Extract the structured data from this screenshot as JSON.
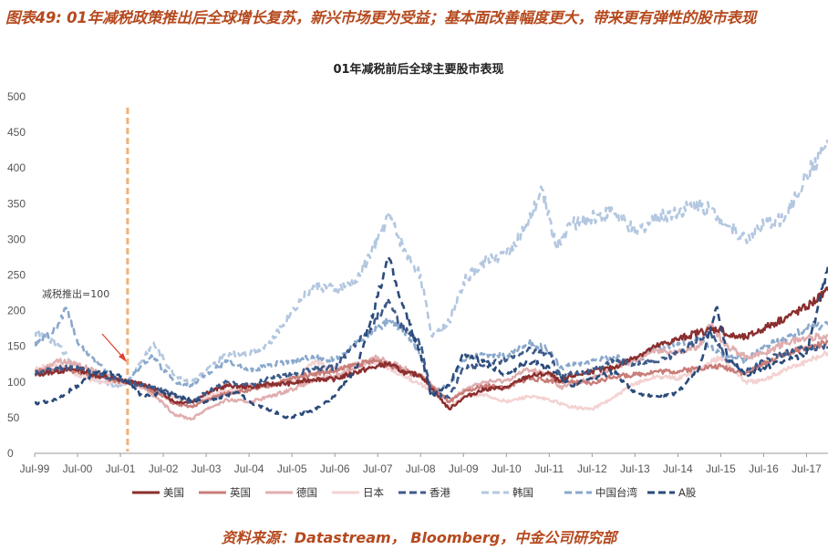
{
  "figure": {
    "title": "图表49: 01年减税政策推出后全球增长复苏，新兴市场更为受益；基本面改善幅度更大，带来更有弹性的股市表现",
    "source": "资料来源：Datastream， Bloomberg，中金公司研究部"
  },
  "chart_data": {
    "type": "line",
    "title": "01年减税前后全球主要股市表现",
    "xlabel": "",
    "ylabel": "",
    "ylim": [
      0,
      500
    ],
    "yticks": [
      0,
      50,
      100,
      150,
      200,
      250,
      300,
      350,
      400,
      450,
      500
    ],
    "x_tick_labels": [
      "Jul-99",
      "Jul-00",
      "Jul-01",
      "Jul-02",
      "Jul-03",
      "Jul-04",
      "Jul-05",
      "Jul-06",
      "Jul-07",
      "Jul-08",
      "Jul-09",
      "Jul-10",
      "Jul-11",
      "Jul-12",
      "Jul-13",
      "Jul-14",
      "Jul-15",
      "Jul-16",
      "Jul-17"
    ],
    "xrange": [
      "1999-07",
      "2018-01"
    ],
    "grid": false,
    "legend_position": "bottom",
    "vertical_marker": {
      "x": "2001-09",
      "color": "#f0b27a"
    },
    "annotation": {
      "text": "减税推出=100"
    },
    "series": [
      {
        "name": "美国",
        "color": "#8b2e2e",
        "dash": "solid",
        "x": [
          "1999-07",
          "2000-01",
          "2000-07",
          "2001-01",
          "2001-06",
          "2001-09",
          "2002-01",
          "2002-07",
          "2002-10",
          "2003-03",
          "2003-07",
          "2004-01",
          "2004-07",
          "2005-01",
          "2005-07",
          "2006-01",
          "2006-07",
          "2007-01",
          "2007-07",
          "2007-10",
          "2008-03",
          "2008-07",
          "2009-03",
          "2009-07",
          "2010-01",
          "2010-07",
          "2011-01",
          "2011-07",
          "2011-10",
          "2012-01",
          "2012-07",
          "2013-01",
          "2013-07",
          "2014-01",
          "2014-07",
          "2015-01",
          "2015-07",
          "2015-09",
          "2016-02",
          "2016-07",
          "2017-01",
          "2017-07",
          "2018-01"
        ],
        "values": [
          110,
          115,
          118,
          108,
          104,
          100,
          98,
          85,
          72,
          72,
          85,
          95,
          93,
          97,
          98,
          104,
          104,
          114,
          122,
          126,
          112,
          110,
          62,
          78,
          90,
          92,
          108,
          112,
          100,
          108,
          115,
          120,
          135,
          150,
          160,
          170,
          175,
          165,
          162,
          175,
          190,
          205,
          228
        ]
      },
      {
        "name": "英国",
        "color": "#c97d78",
        "dash": "solid",
        "x": [
          "1999-07",
          "2000-01",
          "2000-07",
          "2001-01",
          "2001-06",
          "2001-09",
          "2002-01",
          "2002-07",
          "2002-10",
          "2003-03",
          "2003-07",
          "2004-01",
          "2004-07",
          "2005-01",
          "2005-07",
          "2006-01",
          "2006-07",
          "2007-01",
          "2007-07",
          "2008-01",
          "2008-07",
          "2009-03",
          "2009-07",
          "2010-01",
          "2010-07",
          "2011-01",
          "2011-07",
          "2012-01",
          "2012-07",
          "2013-01",
          "2013-07",
          "2014-01",
          "2014-07",
          "2015-01",
          "2015-07",
          "2016-02",
          "2016-07",
          "2017-01",
          "2017-07",
          "2018-01"
        ],
        "values": [
          115,
          118,
          115,
          108,
          102,
          100,
          95,
          80,
          70,
          65,
          75,
          85,
          88,
          95,
          105,
          112,
          115,
          125,
          130,
          118,
          108,
          72,
          85,
          95,
          92,
          105,
          102,
          100,
          98,
          108,
          110,
          115,
          115,
          120,
          122,
          112,
          125,
          140,
          148,
          155
        ]
      },
      {
        "name": "德国",
        "color": "#e0aeb0",
        "dash": "solid",
        "x": [
          "1999-07",
          "2000-01",
          "2000-07",
          "2001-01",
          "2001-06",
          "2001-09",
          "2002-01",
          "2002-07",
          "2002-10",
          "2003-03",
          "2003-07",
          "2004-01",
          "2004-07",
          "2005-01",
          "2005-07",
          "2006-01",
          "2006-07",
          "2007-01",
          "2007-07",
          "2008-01",
          "2008-07",
          "2009-03",
          "2009-07",
          "2010-01",
          "2010-07",
          "2011-01",
          "2011-07",
          "2011-10",
          "2012-07",
          "2013-01",
          "2013-07",
          "2014-01",
          "2014-07",
          "2015-01",
          "2015-04",
          "2015-09",
          "2016-02",
          "2016-07",
          "2017-01",
          "2017-07",
          "2018-01"
        ],
        "values": [
          108,
          130,
          125,
          112,
          105,
          100,
          95,
          70,
          55,
          48,
          62,
          75,
          72,
          80,
          90,
          102,
          108,
          120,
          135,
          122,
          110,
          72,
          90,
          100,
          102,
          118,
          110,
          92,
          105,
          120,
          130,
          145,
          142,
          150,
          180,
          150,
          135,
          140,
          155,
          162,
          165
        ]
      },
      {
        "name": "日本",
        "color": "#f4d2d2",
        "dash": "solid",
        "x": [
          "1999-07",
          "2000-01",
          "2000-07",
          "2001-01",
          "2001-06",
          "2001-09",
          "2002-01",
          "2002-07",
          "2003-03",
          "2003-07",
          "2004-01",
          "2004-07",
          "2005-01",
          "2005-07",
          "2006-01",
          "2006-07",
          "2007-01",
          "2007-07",
          "2008-01",
          "2008-07",
          "2009-03",
          "2009-07",
          "2010-01",
          "2010-07",
          "2011-01",
          "2011-07",
          "2012-01",
          "2012-07",
          "2013-01",
          "2013-07",
          "2014-01",
          "2014-07",
          "2015-01",
          "2015-07",
          "2016-02",
          "2016-07",
          "2017-01",
          "2017-07",
          "2018-01"
        ],
        "values": [
          118,
          125,
          110,
          100,
          98,
          100,
          92,
          85,
          72,
          80,
          88,
          95,
          95,
          100,
          128,
          118,
          125,
          128,
          110,
          98,
          65,
          80,
          82,
          72,
          80,
          75,
          65,
          62,
          78,
          98,
          108,
          105,
          118,
          135,
          100,
          102,
          118,
          128,
          142
        ]
      },
      {
        "name": "香港",
        "color": "#3d5a8a",
        "dash": "dash",
        "x": [
          "1999-07",
          "2000-01",
          "2000-07",
          "2001-01",
          "2001-06",
          "2001-09",
          "2002-01",
          "2002-07",
          "2003-03",
          "2003-07",
          "2004-01",
          "2004-07",
          "2005-01",
          "2005-07",
          "2006-01",
          "2006-07",
          "2007-01",
          "2007-05",
          "2007-10",
          "2008-01",
          "2008-07",
          "2008-10",
          "2009-03",
          "2009-07",
          "2010-01",
          "2010-07",
          "2011-01",
          "2011-07",
          "2011-10",
          "2012-07",
          "2013-01",
          "2013-07",
          "2014-01",
          "2014-07",
          "2015-04",
          "2015-09",
          "2016-02",
          "2016-07",
          "2017-01",
          "2017-07",
          "2018-01"
        ],
        "values": [
          112,
          120,
          122,
          110,
          104,
          100,
          95,
          88,
          72,
          85,
          100,
          95,
          105,
          110,
          118,
          120,
          155,
          175,
          215,
          180,
          155,
          85,
          78,
          120,
          125,
          130,
          145,
          140,
          110,
          115,
          130,
          125,
          128,
          140,
          170,
          130,
          115,
          130,
          140,
          148,
          150
        ]
      },
      {
        "name": "韩国",
        "color": "#b3c7e0",
        "dash": "dash",
        "x": [
          "1999-07",
          "2000-01",
          "2000-07",
          "2001-01",
          "2001-06",
          "2001-09",
          "2002-01",
          "2002-04",
          "2002-10",
          "2003-03",
          "2003-07",
          "2004-01",
          "2004-07",
          "2005-01",
          "2005-07",
          "2006-01",
          "2006-07",
          "2007-01",
          "2007-07",
          "2007-10",
          "2008-03",
          "2008-07",
          "2008-10",
          "2009-03",
          "2009-07",
          "2010-01",
          "2010-07",
          "2011-01",
          "2011-05",
          "2011-09",
          "2012-01",
          "2012-07",
          "2013-01",
          "2013-07",
          "2014-01",
          "2014-07",
          "2015-01",
          "2015-07",
          "2016-02",
          "2016-07",
          "2017-01",
          "2017-07",
          "2018-01"
        ],
        "values": [
          170,
          155,
          120,
          100,
          95,
          100,
          130,
          155,
          110,
          100,
          115,
          140,
          140,
          155,
          200,
          235,
          230,
          240,
          300,
          335,
          280,
          250,
          165,
          185,
          240,
          270,
          280,
          320,
          370,
          290,
          320,
          330,
          340,
          310,
          330,
          340,
          350,
          330,
          300,
          320,
          330,
          390,
          435
        ]
      },
      {
        "name": "中国台湾",
        "color": "#8aa8cc",
        "dash": "dash",
        "x": [
          "1999-07",
          "2000-01",
          "2000-04",
          "2000-07",
          "2001-01",
          "2001-06",
          "2001-09",
          "2002-01",
          "2002-04",
          "2002-10",
          "2003-03",
          "2003-07",
          "2004-01",
          "2004-07",
          "2005-01",
          "2005-07",
          "2006-01",
          "2006-07",
          "2007-01",
          "2007-07",
          "2007-10",
          "2008-03",
          "2008-07",
          "2008-10",
          "2009-03",
          "2009-07",
          "2010-01",
          "2010-07",
          "2011-01",
          "2011-07",
          "2011-10",
          "2012-07",
          "2013-01",
          "2013-07",
          "2014-01",
          "2014-07",
          "2015-01",
          "2015-07",
          "2016-02",
          "2016-07",
          "2017-01",
          "2017-07",
          "2018-01"
        ],
        "values": [
          150,
          175,
          205,
          155,
          125,
          100,
          100,
          125,
          135,
          100,
          95,
          110,
          130,
          115,
          125,
          130,
          135,
          130,
          155,
          175,
          185,
          170,
          140,
          85,
          95,
          130,
          140,
          135,
          155,
          145,
          120,
          130,
          135,
          130,
          145,
          155,
          160,
          140,
          130,
          150,
          160,
          175,
          180
        ]
      },
      {
        "name": "A股",
        "color": "#2a4a7a",
        "dash": "dash",
        "x": [
          "1999-07",
          "2000-01",
          "2000-07",
          "2001-01",
          "2001-06",
          "2001-09",
          "2002-01",
          "2002-07",
          "2003-03",
          "2003-07",
          "2004-04",
          "2004-07",
          "2005-01",
          "2005-06",
          "2006-01",
          "2006-07",
          "2007-01",
          "2007-05",
          "2007-10",
          "2008-01",
          "2008-04",
          "2008-07",
          "2008-10",
          "2009-03",
          "2009-07",
          "2009-10",
          "2010-07",
          "2011-01",
          "2011-07",
          "2012-01",
          "2012-07",
          "2013-01",
          "2013-07",
          "2014-01",
          "2014-07",
          "2015-01",
          "2015-06",
          "2015-09",
          "2016-02",
          "2016-07",
          "2017-01",
          "2017-07",
          "2018-01"
        ],
        "values": [
          70,
          75,
          95,
          115,
          110,
          100,
          80,
          85,
          75,
          72,
          85,
          72,
          60,
          50,
          60,
          80,
          120,
          185,
          275,
          220,
          180,
          140,
          80,
          95,
          140,
          135,
          110,
          130,
          120,
          95,
          105,
          115,
          85,
          80,
          85,
          120,
          205,
          135,
          110,
          120,
          130,
          140,
          262
        ]
      }
    ]
  }
}
